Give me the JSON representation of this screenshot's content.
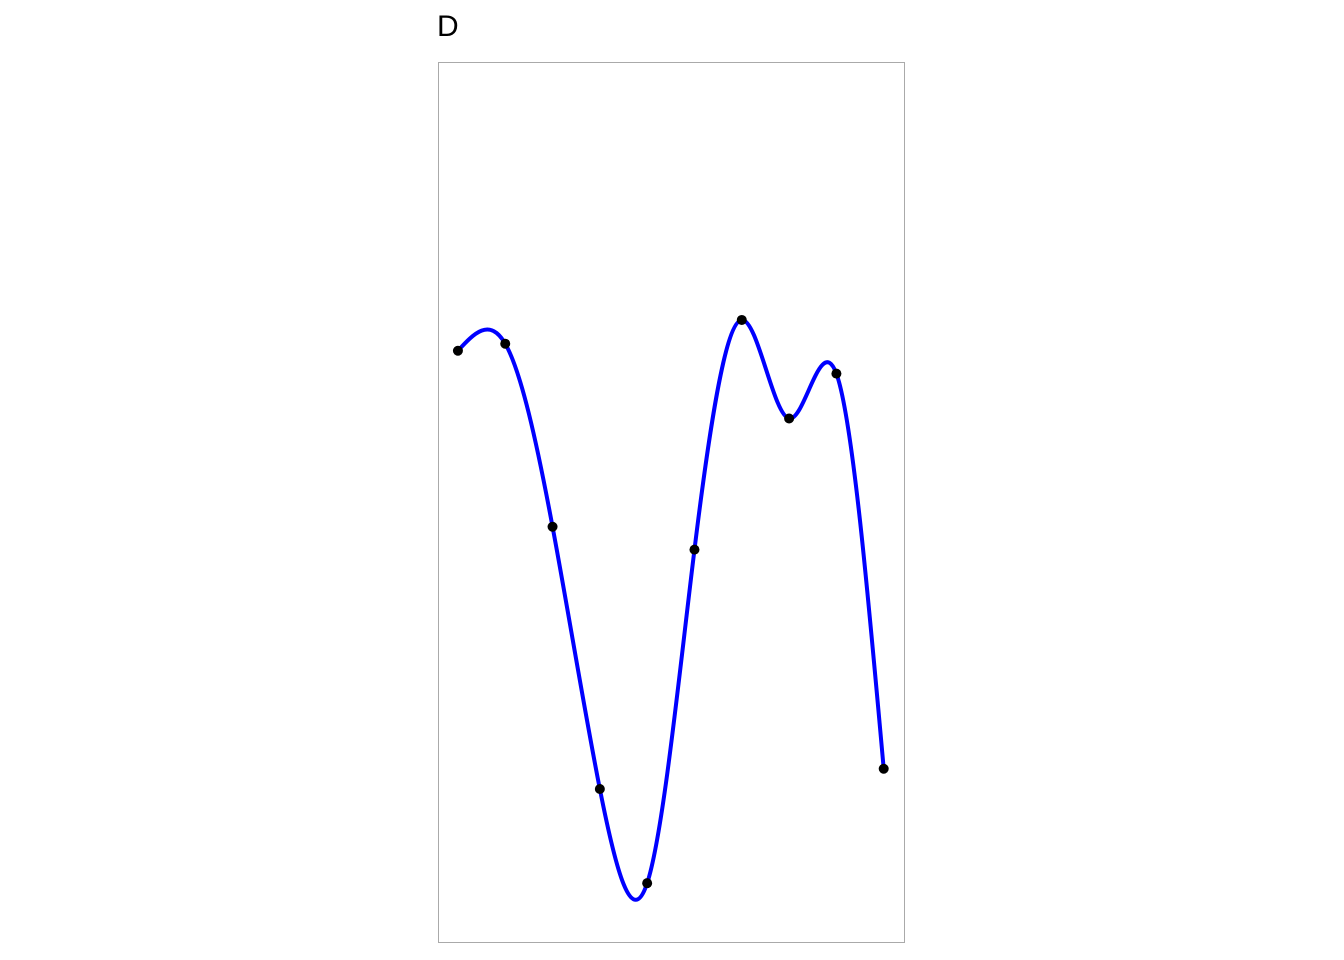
{
  "chart_data": {
    "type": "spline",
    "title": "D",
    "x": [
      1,
      2,
      3,
      4,
      5,
      6,
      7,
      8,
      9,
      10
    ],
    "series": [
      {
        "color": "#0000ff",
        "point_color": "#000000",
        "values": [
          6.73,
          6.81,
          4.73,
          1.75,
          0.68,
          4.47,
          7.08,
          5.96,
          6.47,
          1.98
        ]
      }
    ],
    "xlim": [
      0.6,
      10.45
    ],
    "ylim": [
      0,
      10
    ]
  }
}
